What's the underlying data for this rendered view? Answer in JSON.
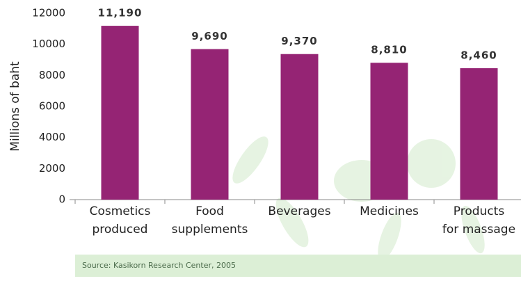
{
  "chart_data": {
    "type": "bar",
    "y_label": "Millions of baht",
    "categories": [
      [
        "Cosmetics",
        "produced"
      ],
      [
        "Food",
        "supplements"
      ],
      [
        "Beverages"
      ],
      [
        "Medicines"
      ],
      [
        "Products",
        "for massage"
      ]
    ],
    "values": [
      11190,
      9690,
      9370,
      8810,
      8460
    ],
    "value_labels": [
      "11,190",
      "9,690",
      "9,370",
      "8,810",
      "8,460"
    ],
    "color": "#952474",
    "ylim": [
      0,
      12000
    ],
    "yticks": [
      0,
      2000,
      4000,
      6000,
      8000,
      10000,
      12000
    ],
    "grid": false,
    "source": "Source: Kasikorn Research Center, 2005"
  }
}
